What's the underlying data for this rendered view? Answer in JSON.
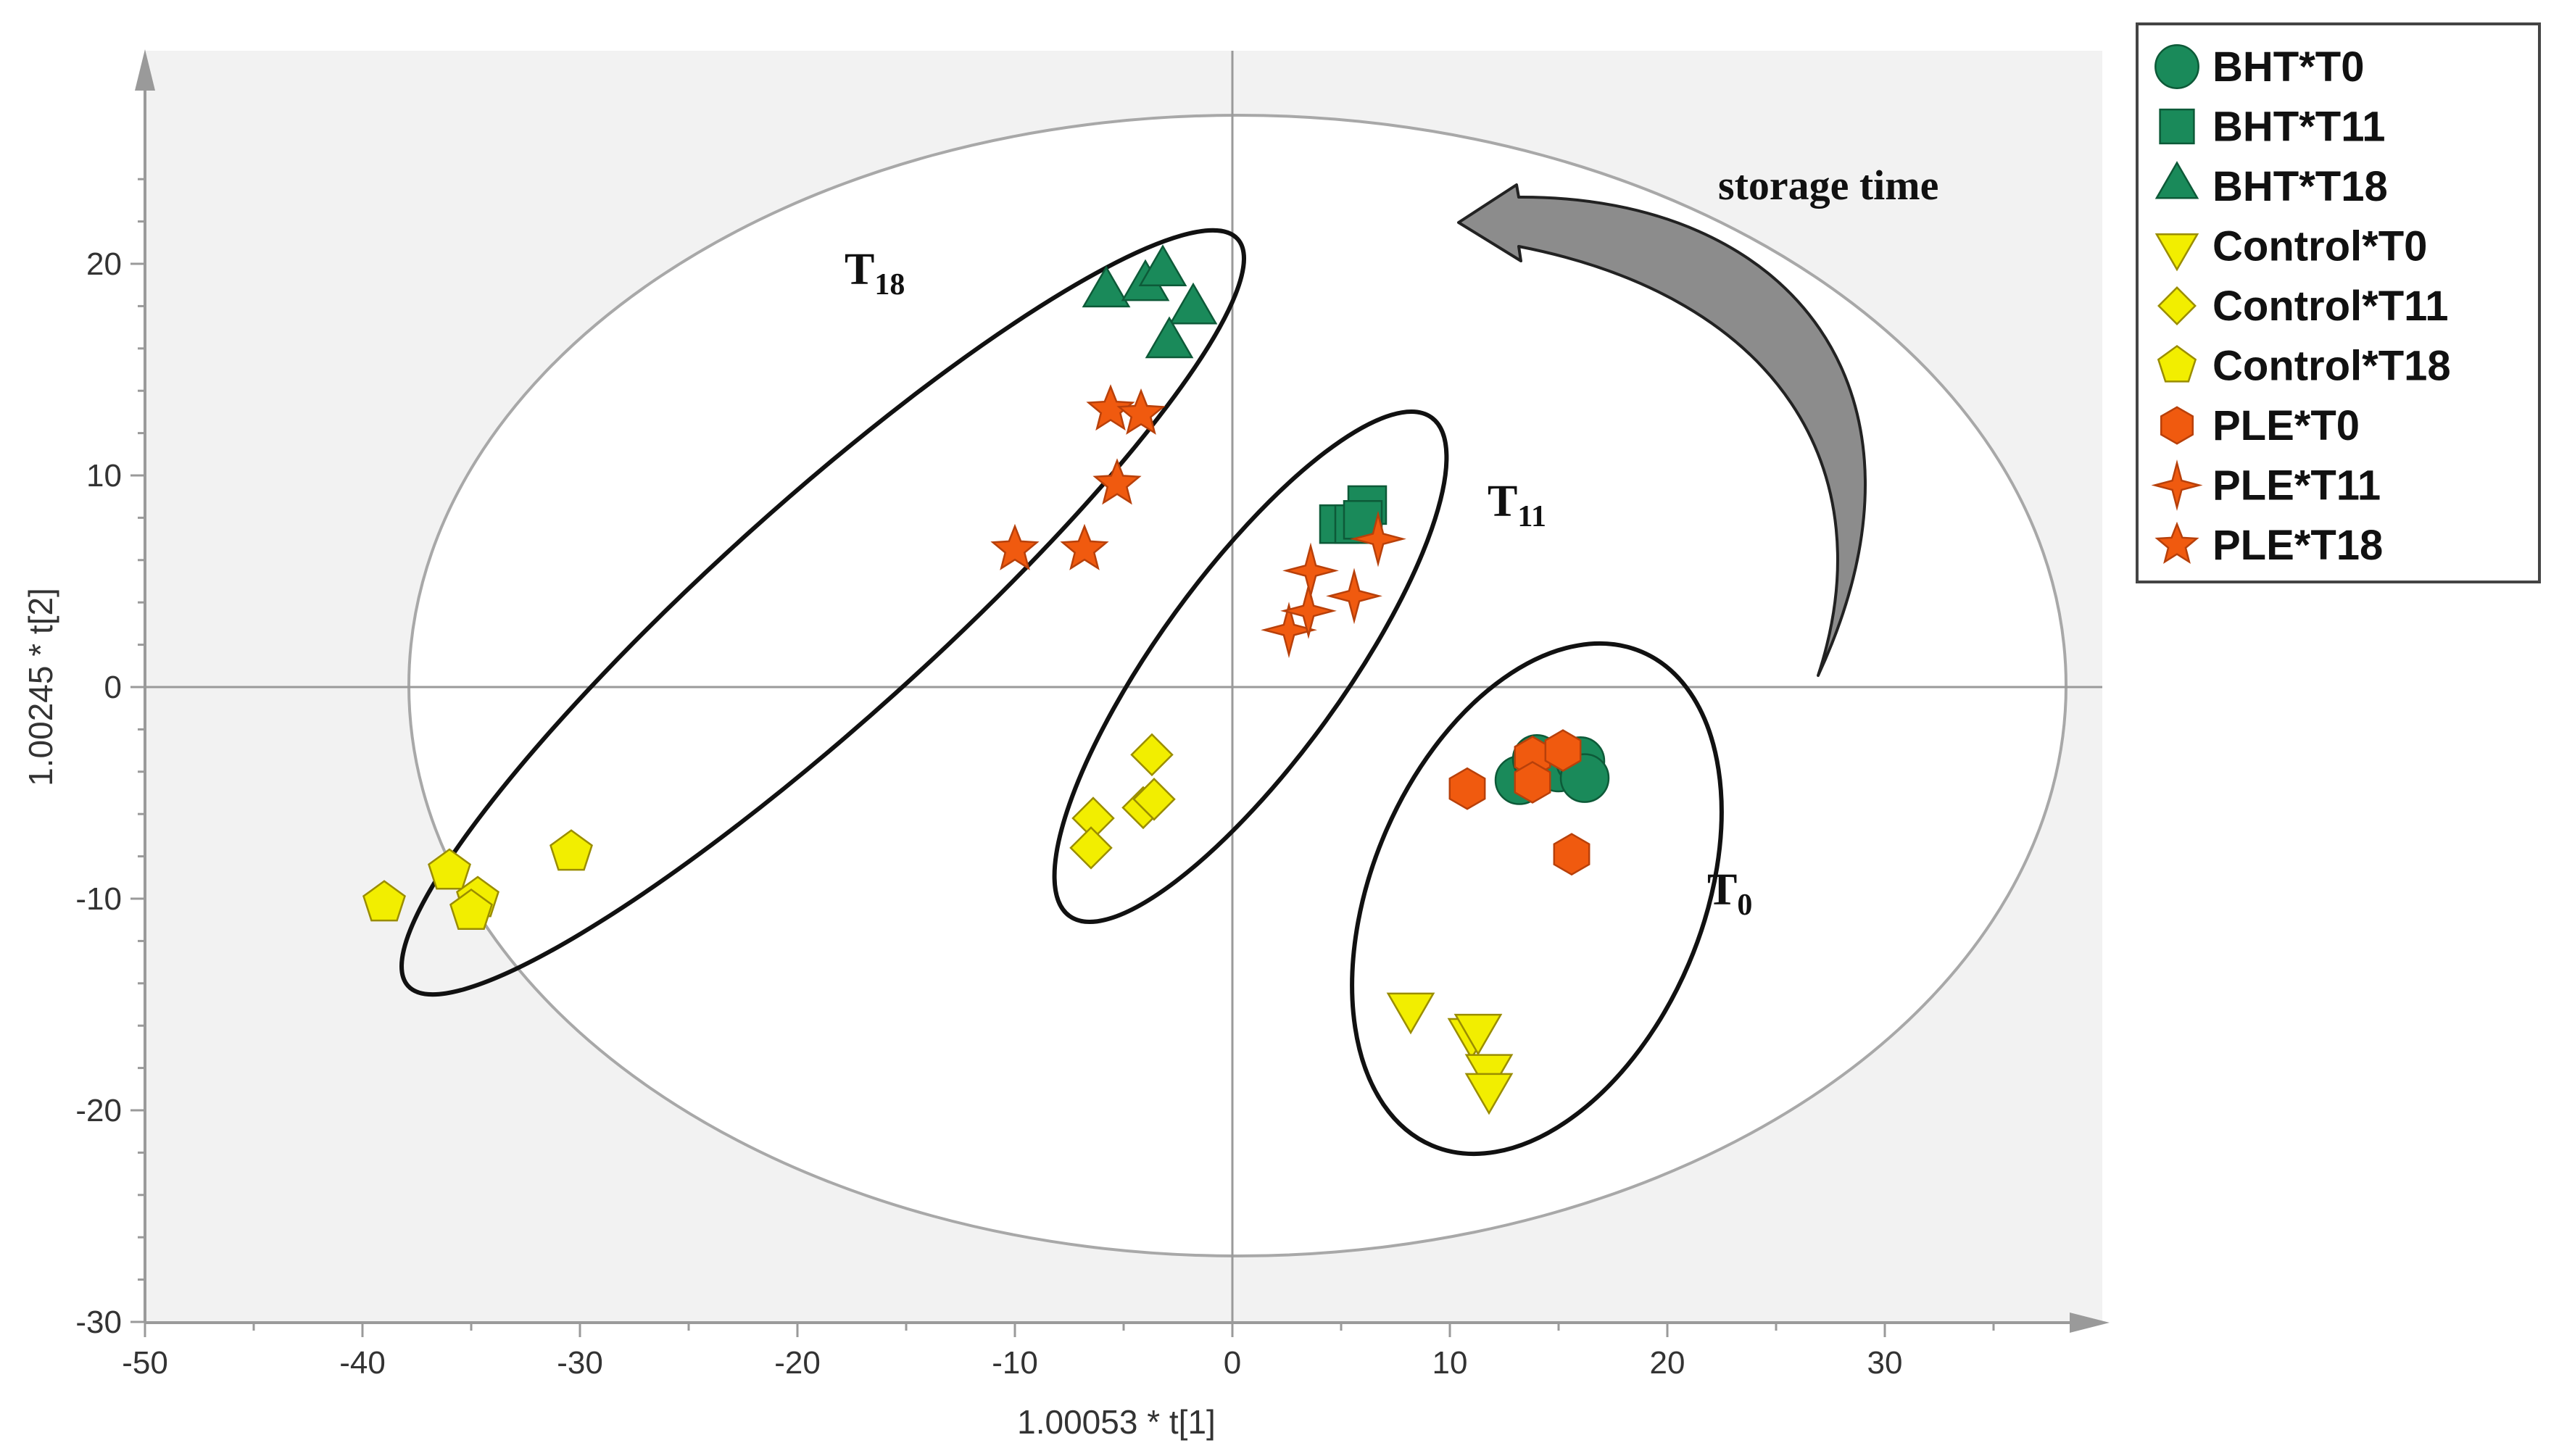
{
  "chart_data": {
    "type": "scatter",
    "title": "",
    "xlabel": "1.00053 * t[1]",
    "ylabel": "1.00245 * t[2]",
    "xlim": [
      -50,
      40
    ],
    "ylim": [
      -30,
      30
    ],
    "xticks": [
      -50,
      -40,
      -30,
      -20,
      -10,
      0,
      10,
      20,
      30
    ],
    "yticks": [
      -30,
      -20,
      -10,
      0,
      10,
      20
    ],
    "tick_labels_x": [
      "-50",
      "-40",
      "-30",
      "-20",
      "-10",
      "0",
      "10",
      "20",
      "30"
    ],
    "tick_labels_y": [
      "-30",
      "-20",
      "-10",
      "0",
      "10",
      "20"
    ],
    "legend_position": "right, outside plot",
    "colors": {
      "bht": "#1a8a5a",
      "control": "#f2ee00",
      "ple": "#f05a0f"
    },
    "series": [
      {
        "name": "BHT*T0",
        "marker": "circle",
        "color": "#1a8a5a",
        "points": [
          [
            13.2,
            -4.4
          ],
          [
            14.0,
            -3.4
          ],
          [
            15.0,
            -3.8
          ],
          [
            16.0,
            -3.5
          ],
          [
            16.2,
            -4.3
          ]
        ]
      },
      {
        "name": "BHT*T11",
        "marker": "square",
        "color": "#1a8a5a",
        "points": [
          [
            4.9,
            7.7
          ],
          [
            5.6,
            7.7
          ],
          [
            6.2,
            8.6
          ],
          [
            6.0,
            7.9
          ]
        ]
      },
      {
        "name": "BHT*T18",
        "marker": "triangle-up",
        "color": "#1a8a5a",
        "points": [
          [
            -5.8,
            18.6
          ],
          [
            -4.0,
            18.9
          ],
          [
            -3.2,
            19.6
          ],
          [
            -1.8,
            17.8
          ],
          [
            -2.9,
            16.2
          ]
        ]
      },
      {
        "name": "Control*T0",
        "marker": "triangle-down",
        "color": "#f2ee00",
        "points": [
          [
            8.2,
            -15.1
          ],
          [
            11.0,
            -16.3
          ],
          [
            11.3,
            -16.1
          ],
          [
            11.8,
            -18.0
          ],
          [
            11.8,
            -18.9
          ]
        ]
      },
      {
        "name": "Control*T11",
        "marker": "diamond",
        "color": "#f2ee00",
        "points": [
          [
            -6.4,
            -6.2
          ],
          [
            -6.5,
            -7.6
          ],
          [
            -4.1,
            -5.7
          ],
          [
            -3.6,
            -5.3
          ],
          [
            -3.7,
            -3.2
          ]
        ]
      },
      {
        "name": "Control*T18",
        "marker": "pentagon",
        "color": "#f2ee00",
        "points": [
          [
            -39.0,
            -10.2
          ],
          [
            -36.0,
            -8.7
          ],
          [
            -34.7,
            -10.0
          ],
          [
            -35.0,
            -10.6
          ],
          [
            -30.4,
            -7.8
          ]
        ]
      },
      {
        "name": "PLE*T0",
        "marker": "hexagon",
        "color": "#f05a0f",
        "points": [
          [
            10.8,
            -4.8
          ],
          [
            13.8,
            -3.3
          ],
          [
            13.8,
            -4.5
          ],
          [
            15.2,
            -3.0
          ],
          [
            15.6,
            -7.9
          ]
        ]
      },
      {
        "name": "PLE*T11",
        "marker": "star4",
        "color": "#f05a0f",
        "points": [
          [
            2.6,
            2.7
          ],
          [
            3.5,
            3.6
          ],
          [
            3.6,
            5.5
          ],
          [
            5.6,
            4.3
          ],
          [
            6.7,
            7.0
          ]
        ]
      },
      {
        "name": "PLE*T18",
        "marker": "star5",
        "color": "#f05a0f",
        "points": [
          [
            -10.0,
            6.5
          ],
          [
            -6.8,
            6.5
          ],
          [
            -5.3,
            9.6
          ],
          [
            -5.6,
            13.1
          ],
          [
            -4.2,
            12.9
          ]
        ]
      }
    ],
    "annotations": {
      "t18": {
        "base": "T",
        "sub": "18"
      },
      "t11": {
        "base": "T",
        "sub": "11"
      },
      "t0": {
        "base": "T",
        "sub": "0"
      },
      "arrow_label": "storage time"
    }
  }
}
